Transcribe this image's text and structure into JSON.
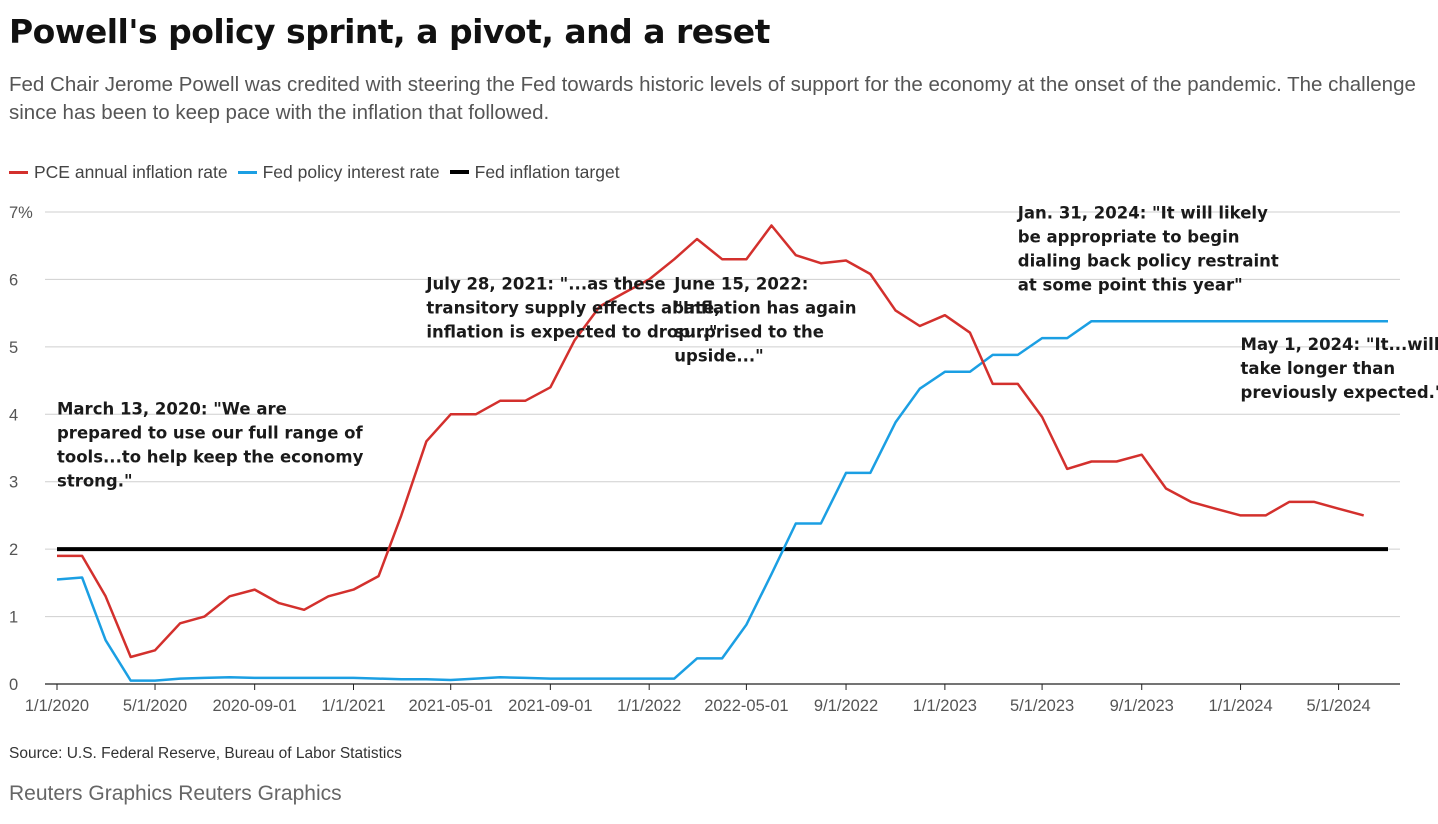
{
  "header": {
    "title": "Powell's policy sprint, a pivot, and a reset",
    "subtitle": "Fed Chair Jerome Powell was credited with steering the Fed towards historic levels of support for the economy at the onset of the pandemic. The challenge since has been to keep pace with the inflation that followed."
  },
  "legend": [
    {
      "label": "PCE annual inflation rate",
      "color": "#d3302d"
    },
    {
      "label": "Fed policy interest rate",
      "color": "#1b9fe3"
    },
    {
      "label": "Fed inflation target",
      "color": "#000000"
    }
  ],
  "footer": {
    "source": "Source: U.S. Federal Reserve, Bureau of Labor Statistics",
    "credit": "Reuters Graphics Reuters Graphics"
  },
  "chart_data": {
    "type": "line",
    "title": "Powell's policy sprint, a pivot, and a reset",
    "xlabel": "",
    "ylabel": "",
    "x": [
      "2020-01-01",
      "2020-02-01",
      "2020-03-01",
      "2020-04-01",
      "2020-05-01",
      "2020-06-01",
      "2020-07-01",
      "2020-08-01",
      "2020-09-01",
      "2020-10-01",
      "2020-11-01",
      "2020-12-01",
      "2021-01-01",
      "2021-02-01",
      "2021-03-01",
      "2021-04-01",
      "2021-05-01",
      "2021-06-01",
      "2021-07-01",
      "2021-08-01",
      "2021-09-01",
      "2021-10-01",
      "2021-11-01",
      "2021-12-01",
      "2022-01-01",
      "2022-02-01",
      "2022-03-01",
      "2022-04-01",
      "2022-05-01",
      "2022-06-01",
      "2022-07-01",
      "2022-08-01",
      "2022-09-01",
      "2022-10-01",
      "2022-11-01",
      "2022-12-01",
      "2023-01-01",
      "2023-02-01",
      "2023-03-01",
      "2023-04-01",
      "2023-05-01",
      "2023-06-01",
      "2023-07-01",
      "2023-08-01",
      "2023-09-01",
      "2023-10-01",
      "2023-11-01",
      "2023-12-01",
      "2024-01-01",
      "2024-02-01",
      "2024-03-01",
      "2024-04-01",
      "2024-05-01",
      "2024-06-01",
      "2024-07-01"
    ],
    "series": [
      {
        "name": "PCE annual inflation rate",
        "color": "#d3302d",
        "values": [
          1.9,
          1.9,
          1.3,
          0.4,
          0.5,
          0.9,
          1.0,
          1.3,
          1.4,
          1.2,
          1.1,
          1.3,
          1.4,
          1.6,
          2.5,
          3.6,
          4.0,
          4.0,
          4.2,
          4.2,
          4.4,
          5.1,
          5.6,
          5.8,
          6.0,
          6.3,
          6.6,
          6.3,
          6.3,
          6.8,
          6.36,
          6.24,
          6.28,
          6.08,
          5.54,
          5.31,
          5.47,
          5.21,
          4.45,
          4.45,
          3.96,
          3.19,
          3.3,
          3.3,
          3.4,
          2.9,
          2.7,
          2.6,
          2.5,
          2.5,
          2.7,
          2.7,
          2.6,
          2.5,
          null
        ]
      },
      {
        "name": "Fed policy interest rate",
        "color": "#1b9fe3",
        "values": [
          1.55,
          1.58,
          0.65,
          0.05,
          0.05,
          0.08,
          0.09,
          0.1,
          0.09,
          0.09,
          0.09,
          0.09,
          0.09,
          0.08,
          0.07,
          0.07,
          0.06,
          0.08,
          0.1,
          0.09,
          0.08,
          0.08,
          0.08,
          0.08,
          0.08,
          0.08,
          0.38,
          0.38,
          0.88,
          1.63,
          2.38,
          2.38,
          3.13,
          3.13,
          3.88,
          4.38,
          4.63,
          4.63,
          4.88,
          4.88,
          5.13,
          5.13,
          5.38,
          5.38,
          5.38,
          5.38,
          5.38,
          5.38,
          5.38,
          5.38,
          5.38,
          5.38,
          5.38,
          5.38,
          5.38
        ]
      },
      {
        "name": "Fed inflation target",
        "color": "#000000",
        "values": [
          2,
          2,
          2,
          2,
          2,
          2,
          2,
          2,
          2,
          2,
          2,
          2,
          2,
          2,
          2,
          2,
          2,
          2,
          2,
          2,
          2,
          2,
          2,
          2,
          2,
          2,
          2,
          2,
          2,
          2,
          2,
          2,
          2,
          2,
          2,
          2,
          2,
          2,
          2,
          2,
          2,
          2,
          2,
          2,
          2,
          2,
          2,
          2,
          2,
          2,
          2,
          2,
          2,
          2,
          2
        ]
      }
    ],
    "x_tick_labels": [
      "1/1/2020",
      "5/1/2020",
      "2020-09-01",
      "1/1/2021",
      "2021-05-01",
      "2021-09-01",
      "1/1/2022",
      "2022-05-01",
      "9/1/2022",
      "1/1/2023",
      "5/1/2023",
      "9/1/2023",
      "1/1/2024",
      "5/1/2024"
    ],
    "y_ticks": [
      0,
      1,
      2,
      3,
      4,
      5,
      6,
      7
    ],
    "y_tick_labels": [
      "0",
      "1",
      "2",
      "3",
      "4",
      "5",
      "6",
      "7%"
    ],
    "ylim": [
      0,
      7
    ],
    "grid": true,
    "legend_position": "top-left",
    "annotations": [
      {
        "at": "2020-01-01",
        "value": 4.0,
        "lines": [
          "March 13, 2020: \"We are",
          "prepared to use our full range of",
          "tools...to help keep the economy",
          "strong.\""
        ]
      },
      {
        "at": "2021-04-01",
        "value": 5.85,
        "lines": [
          "July 28, 2021: \"...as these",
          "transitory supply effects abate,",
          "inflation is expected to drop...\""
        ]
      },
      {
        "at": "2022-02-01",
        "value": 5.85,
        "lines": [
          "June 15, 2022:",
          "\"Inflation has again",
          "surprised to the",
          "upside...\""
        ]
      },
      {
        "at": "2023-04-01",
        "value": 6.9,
        "lines": [
          "Jan. 31, 2024: \"It will likely",
          "be appropriate to begin",
          "dialing back policy restraint",
          "at some point this year\""
        ]
      },
      {
        "at": "2024-01-01",
        "value": 4.95,
        "lines": [
          "May 1, 2024: \"It...will",
          "take longer than",
          "previously expected.\""
        ]
      }
    ]
  }
}
